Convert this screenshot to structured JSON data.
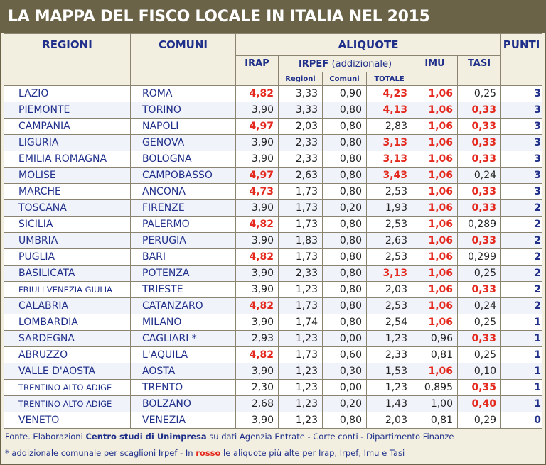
{
  "title": "LA MAPPA DEL FISCO LOCALE IN ITALIA NEL 2015",
  "headers": {
    "regioni": "REGIONI",
    "comuni": "COMUNI",
    "aliquote": "ALIQUOTE",
    "punti": "PUNTI",
    "irap": "IRAP",
    "irpef": "IRPEF",
    "irpef_sub": "(addizionale)",
    "imu": "IMU",
    "tasi": "TASI",
    "irpef_regioni": "Regioni",
    "irpef_comuni": "Comuni",
    "irpef_totale": "TOTALE"
  },
  "rows": [
    {
      "regione": "LAZIO",
      "comune": "ROMA",
      "irap": "4,82",
      "reg": "3,33",
      "com": "0,90",
      "tot": "4,23",
      "imu": "1,06",
      "tasi": "0,25",
      "punti": "3",
      "red": [
        "irap",
        "tot",
        "imu"
      ]
    },
    {
      "regione": "PIEMONTE",
      "comune": "TORINO",
      "irap": "3,90",
      "reg": "3,33",
      "com": "0,80",
      "tot": "4,13",
      "imu": "1,06",
      "tasi": "0,33",
      "punti": "3",
      "red": [
        "tot",
        "imu",
        "tasi"
      ]
    },
    {
      "regione": "CAMPANIA",
      "comune": "NAPOLI",
      "irap": "4,97",
      "reg": "2,03",
      "com": "0,80",
      "tot": "2,83",
      "imu": "1,06",
      "tasi": "0,33",
      "punti": "3",
      "red": [
        "irap",
        "imu",
        "tasi"
      ]
    },
    {
      "regione": "LIGURIA",
      "comune": "GENOVA",
      "irap": "3,90",
      "reg": "2,33",
      "com": "0,80",
      "tot": "3,13",
      "imu": "1,06",
      "tasi": "0,33",
      "punti": "3",
      "red": [
        "tot",
        "imu",
        "tasi"
      ]
    },
    {
      "regione": "EMILIA ROMAGNA",
      "comune": "BOLOGNA",
      "irap": "3,90",
      "reg": "2,33",
      "com": "0,80",
      "tot": "3,13",
      "imu": "1,06",
      "tasi": "0,33",
      "punti": "3",
      "red": [
        "tot",
        "imu",
        "tasi"
      ]
    },
    {
      "regione": "MOLISE",
      "comune": "CAMPOBASSO",
      "irap": "4,97",
      "reg": "2,63",
      "com": "0,80",
      "tot": "3,43",
      "imu": "1,06",
      "tasi": "0,24",
      "punti": "3",
      "red": [
        "irap",
        "tot",
        "imu"
      ]
    },
    {
      "regione": "MARCHE",
      "comune": "ANCONA",
      "irap": "4,73",
      "reg": "1,73",
      "com": "0,80",
      "tot": "2,53",
      "imu": "1,06",
      "tasi": "0,33",
      "punti": "3",
      "red": [
        "irap",
        "imu",
        "tasi"
      ]
    },
    {
      "regione": "TOSCANA",
      "comune": "FIRENZE",
      "irap": "3,90",
      "reg": "1,73",
      "com": "0,20",
      "tot": "1,93",
      "imu": "1,06",
      "tasi": "0,33",
      "punti": "2",
      "red": [
        "imu",
        "tasi"
      ]
    },
    {
      "regione": "SICILIA",
      "comune": "PALERMO",
      "irap": "4,82",
      "reg": "1,73",
      "com": "0,80",
      "tot": "2,53",
      "imu": "1,06",
      "tasi": "0,289",
      "punti": "2",
      "red": [
        "irap",
        "imu"
      ]
    },
    {
      "regione": "UMBRIA",
      "comune": "PERUGIA",
      "irap": "3,90",
      "reg": "1,83",
      "com": "0,80",
      "tot": "2,63",
      "imu": "1,06",
      "tasi": "0,33",
      "punti": "2",
      "red": [
        "imu",
        "tasi"
      ]
    },
    {
      "regione": "PUGLIA",
      "comune": "BARI",
      "irap": "4,82",
      "reg": "1,73",
      "com": "0,80",
      "tot": "2,53",
      "imu": "1,06",
      "tasi": "0,299",
      "punti": "2",
      "red": [
        "irap",
        "imu"
      ]
    },
    {
      "regione": "BASILICATA",
      "comune": "POTENZA",
      "irap": "3,90",
      "reg": "2,33",
      "com": "0,80",
      "tot": "3,13",
      "imu": "1,06",
      "tasi": "0,25",
      "punti": "2",
      "red": [
        "tot",
        "imu"
      ]
    },
    {
      "regione": "FRIULI VENEZIA GIULIA",
      "comune": "TRIESTE",
      "irap": "3,90",
      "reg": "1,23",
      "com": "0,80",
      "tot": "2,03",
      "imu": "1,06",
      "tasi": "0,33",
      "punti": "2",
      "red": [
        "imu",
        "tasi"
      ],
      "small": true
    },
    {
      "regione": "CALABRIA",
      "comune": "CATANZARO",
      "irap": "4,82",
      "reg": "1,73",
      "com": "0,80",
      "tot": "2,53",
      "imu": "1,06",
      "tasi": "0,24",
      "punti": "2",
      "red": [
        "irap",
        "imu"
      ]
    },
    {
      "regione": "LOMBARDIA",
      "comune": "MILANO",
      "irap": "3,90",
      "reg": "1,74",
      "com": "0,80",
      "tot": "2,54",
      "imu": "1,06",
      "tasi": "0,25",
      "punti": "1",
      "red": [
        "imu"
      ]
    },
    {
      "regione": "SARDEGNA",
      "comune": "CAGLIARI *",
      "irap": "2,93",
      "reg": "1,23",
      "com": "0,00",
      "tot": "1,23",
      "imu": "0,96",
      "tasi": "0,33",
      "punti": "1",
      "red": [
        "tasi"
      ]
    },
    {
      "regione": "ABRUZZO",
      "comune": "L'AQUILA",
      "irap": "4,82",
      "reg": "1,73",
      "com": "0,60",
      "tot": "2,33",
      "imu": "0,81",
      "tasi": "0,25",
      "punti": "1",
      "red": [
        "irap"
      ]
    },
    {
      "regione": "VALLE D'AOSTA",
      "comune": "AOSTA",
      "irap": "3,90",
      "reg": "1,23",
      "com": "0,30",
      "tot": "1,53",
      "imu": "1,06",
      "tasi": "0,10",
      "punti": "1",
      "red": [
        "imu"
      ]
    },
    {
      "regione": "TRENTINO ALTO ADIGE",
      "comune": "TRENTO",
      "irap": "2,30",
      "reg": "1,23",
      "com": "0,00",
      "tot": "1,23",
      "imu": "0,895",
      "tasi": "0,35",
      "punti": "1",
      "red": [
        "tasi"
      ],
      "small": true
    },
    {
      "regione": "TRENTINO ALTO ADIGE",
      "comune": "BOLZANO",
      "irap": "2,68",
      "reg": "1,23",
      "com": "0,20",
      "tot": "1,43",
      "imu": "1,00",
      "tasi": "0,40",
      "punti": "1",
      "red": [
        "tasi"
      ],
      "small": true
    },
    {
      "regione": "VENETO",
      "comune": "VENEZIA",
      "irap": "3,90",
      "reg": "1,23",
      "com": "0,80",
      "tot": "2,03",
      "imu": "0,81",
      "tasi": "0,29",
      "punti": "0",
      "red": []
    }
  ],
  "footer": {
    "source_prefix": "Fonte. Elaborazioni ",
    "source_bold": "Centro studi di Unimpresa",
    "source_suffix": " su dati Agenzia Entrate - Corte conti - Dipartimento Finanze",
    "note_prefix": "* addizionale comunale per scaglioni Irpef - In ",
    "note_red": "rosso",
    "note_suffix": " le aliquote più alte per Irap, Irpef, Imu e Tasi"
  },
  "colors": {
    "red": "#e42a1f",
    "blue": "#1f2f8a",
    "header_bg": "#6b6348"
  }
}
